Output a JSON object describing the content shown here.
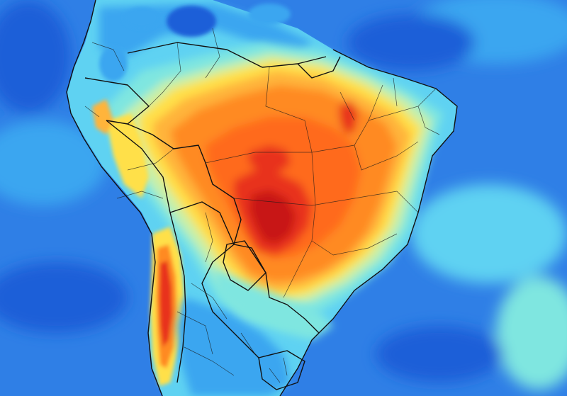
{
  "map": {
    "kind": "temperature-anomaly-heatmap",
    "region": "South America",
    "legend": null,
    "labels": [],
    "palette": {
      "ocean_deep": "#1f5fd8",
      "ocean": "#2f7fe6",
      "ocean_light": "#3aa6f0",
      "cyan": "#5fd2f2",
      "aqua": "#7fe6e0",
      "pale": "#c8f0a8",
      "yellow": "#ffe04a",
      "orange_light": "#ffb43a",
      "orange": "#ff8a24",
      "orange_deep": "#ff6a1a",
      "red": "#e8321a",
      "dark_red": "#c81414",
      "border": "#111111"
    }
  }
}
